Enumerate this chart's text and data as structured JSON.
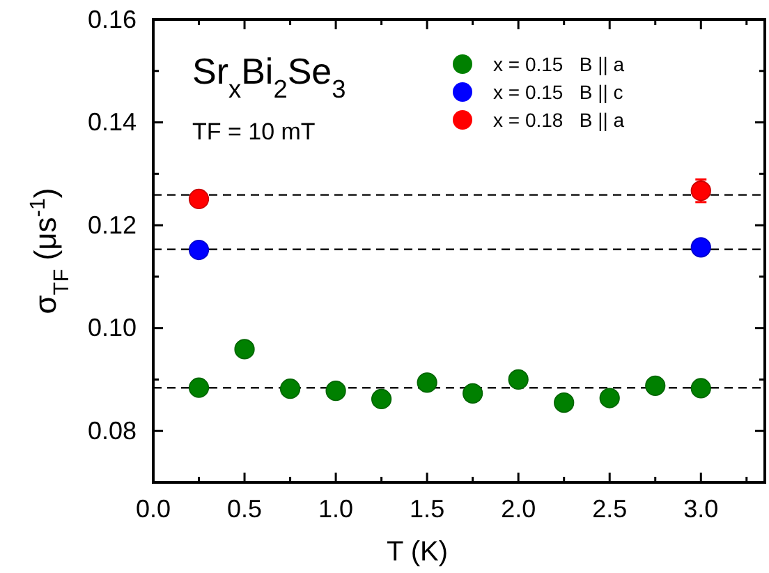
{
  "chart_data": {
    "type": "scatter",
    "xlabel": "T (K)",
    "ylabel": "σ$_{TF}$ (μs$^{-1}$)",
    "annotations": [
      "Sr$_{x}$Bi$_{2}$Se$_{3}$",
      "TF = 10 mT"
    ],
    "xlim": [
      0,
      3.35
    ],
    "ylim": [
      0.07,
      0.16
    ],
    "xticks": [
      {
        "value": 0,
        "label": "0.0"
      },
      {
        "value": 0.25,
        "label": null
      },
      {
        "value": 0.5,
        "label": "0.5"
      },
      {
        "value": 0.75,
        "label": null
      },
      {
        "value": 1,
        "label": "1.0"
      },
      {
        "value": 1.25,
        "label": null
      },
      {
        "value": 1.5,
        "label": "1.5"
      },
      {
        "value": 1.75,
        "label": null
      },
      {
        "value": 2,
        "label": "2.0"
      },
      {
        "value": 2.25,
        "label": null
      },
      {
        "value": 2.5,
        "label": "2.5"
      },
      {
        "value": 2.75,
        "label": null
      },
      {
        "value": 3,
        "label": "3.0"
      },
      {
        "value": 3.25,
        "label": null
      }
    ],
    "yticks": [
      {
        "value": 0.08,
        "label": "0.08"
      },
      {
        "value": 0.09,
        "label": null
      },
      {
        "value": 0.1,
        "label": "0.10"
      },
      {
        "value": 0.11,
        "label": null
      },
      {
        "value": 0.12,
        "label": "0.12"
      },
      {
        "value": 0.13,
        "label": null
      },
      {
        "value": 0.14,
        "label": "0.14"
      },
      {
        "value": 0.15,
        "label": null
      },
      {
        "value": 0.16,
        "label": "0.16"
      }
    ],
    "series": [
      {
        "name": "x = 0.15   B || a",
        "color": "#008000",
        "x": [
          0.25,
          0.5,
          0.75,
          1,
          1.25,
          1.5,
          1.75,
          2,
          2.25,
          2.5,
          2.75,
          3
        ],
        "values": [
          0.0884,
          0.0959,
          0.0882,
          0.0878,
          0.0862,
          0.0894,
          0.0873,
          0.09,
          0.0855,
          0.0864,
          0.0888,
          0.0883
        ]
      },
      {
        "name": "x = 0.15   B || c",
        "color": "#0000ff",
        "x": [
          0.25,
          3
        ],
        "values": [
          0.1152,
          0.1157
        ]
      },
      {
        "name": "x = 0.18   B || a",
        "color": "#ff0000",
        "x": [
          0.25,
          3
        ],
        "values": [
          0.1251,
          0.1267
        ],
        "errors": [
          null,
          0.0022
        ]
      }
    ],
    "ref_lines": [
      {
        "axis": "y",
        "value": 0.1259,
        "line_style": "dashed"
      },
      {
        "axis": "y",
        "value": 0.1153,
        "line_style": "dashed"
      },
      {
        "axis": "y",
        "value": 0.0884,
        "line_style": "dashed"
      }
    ],
    "marker": "circle",
    "legend": "top right",
    "grid": false
  }
}
